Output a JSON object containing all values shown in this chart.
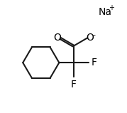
{
  "background_color": "#ffffff",
  "line_color": "#1a1a1a",
  "text_color": "#000000",
  "na_label": "Na",
  "na_superscript": "+",
  "O_double_bond": "O",
  "O_single_bond": "O",
  "O_minus": "−",
  "F1_label": "F",
  "F2_label": "F",
  "line_width": 1.5,
  "font_size": 9,
  "fig_width": 1.79,
  "fig_height": 1.59,
  "dpi": 100
}
